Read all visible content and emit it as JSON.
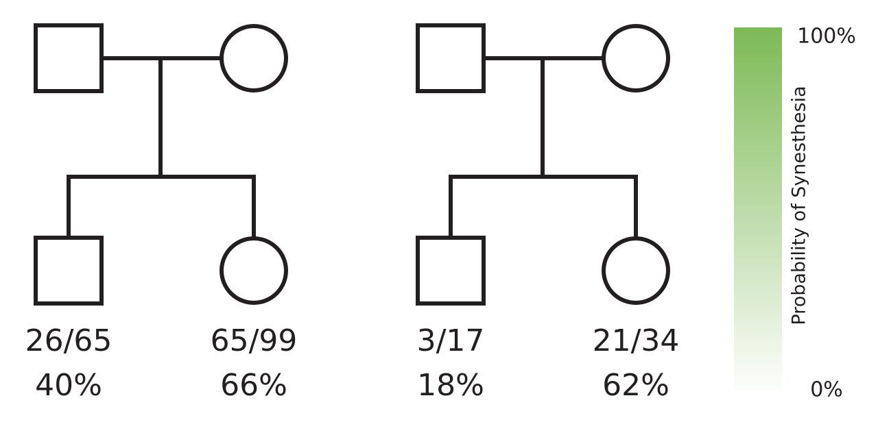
{
  "families": [
    {
      "parents": [
        {
          "shape": "square",
          "fill": "#ffffff"
        },
        {
          "shape": "circle",
          "fill": "#7cba55"
        }
      ],
      "children": [
        {
          "shape": "square",
          "fill": "#b3d69b",
          "fraction": "26/65",
          "percent": "40%"
        },
        {
          "shape": "circle",
          "fill": "#8cc25e",
          "fraction": "65/99",
          "percent": "66%"
        }
      ]
    },
    {
      "parents": [
        {
          "shape": "square",
          "fill": "#7cba55"
        },
        {
          "shape": "circle",
          "fill": "#ffffff"
        }
      ],
      "children": [
        {
          "shape": "square",
          "fill": "#dce9cf",
          "fraction": "3/17",
          "percent": "18%"
        },
        {
          "shape": "circle",
          "fill": "#92c565",
          "fraction": "21/34",
          "percent": "62%"
        }
      ]
    }
  ],
  "colorbar": {
    "title": "Probability of Synesthesia",
    "max_label": "100%",
    "min_label": "0%",
    "max_color": "#7cba55",
    "min_color": "#ffffff"
  }
}
